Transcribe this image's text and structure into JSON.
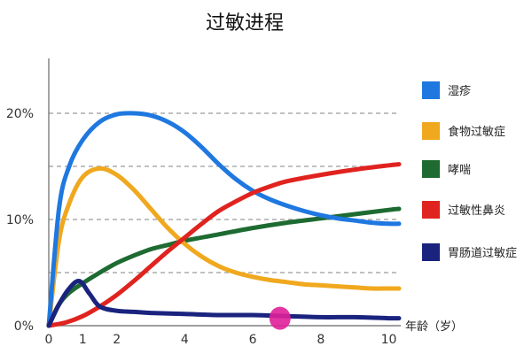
{
  "chart_data": {
    "type": "line",
    "title": "过敏进程",
    "xlabel": "年龄（岁）",
    "ylabel": "",
    "xlim": [
      0,
      10.3
    ],
    "ylim": [
      0,
      24
    ],
    "x_ticks": [
      0,
      1,
      2,
      4,
      6,
      8,
      10
    ],
    "x_tick_labels": [
      "0",
      "1",
      "2",
      "4",
      "6",
      "8",
      "10"
    ],
    "y_ticks": [
      0,
      10,
      20
    ],
    "y_tick_labels": [
      "0%",
      "10%",
      "20%"
    ],
    "dashed_gridlines_y": [
      5,
      10,
      15,
      20
    ],
    "legend_position": "right",
    "series": [
      {
        "name": "湿疹",
        "color": "#1f78e0",
        "x": [
          0,
          0.3,
          0.6,
          1.0,
          1.5,
          2.0,
          2.5,
          3.0,
          3.5,
          4.0,
          4.5,
          5.0,
          5.5,
          6.0,
          6.5,
          7.0,
          7.5,
          8.0,
          8.5,
          9.0,
          9.5,
          10.0,
          10.3
        ],
        "values": [
          0,
          11,
          15,
          17.5,
          19.2,
          19.9,
          20.0,
          19.8,
          19.2,
          18.2,
          16.8,
          15.2,
          13.8,
          12.7,
          11.9,
          11.3,
          10.8,
          10.4,
          10.1,
          9.9,
          9.7,
          9.6,
          9.6
        ]
      },
      {
        "name": "食物过敏症",
        "color": "#f0a81e",
        "x": [
          0,
          0.3,
          0.6,
          1.0,
          1.5,
          2.0,
          2.5,
          3.0,
          3.5,
          4.0,
          4.5,
          5.0,
          5.5,
          6.0,
          6.5,
          7.0,
          7.5,
          8.0,
          8.5,
          9.0,
          9.5,
          10.0,
          10.3
        ],
        "values": [
          0,
          8,
          11.5,
          14,
          14.8,
          14.2,
          12.8,
          11.0,
          9.2,
          7.7,
          6.5,
          5.6,
          5.0,
          4.6,
          4.3,
          4.1,
          3.9,
          3.8,
          3.7,
          3.6,
          3.5,
          3.5,
          3.5
        ]
      },
      {
        "name": "哮喘",
        "color": "#1e6b32",
        "x": [
          0,
          0.3,
          0.6,
          1.0,
          1.5,
          2.0,
          2.5,
          3.0,
          3.5,
          4.0,
          5.0,
          6.0,
          7.0,
          8.0,
          9.0,
          10.0,
          10.3
        ],
        "values": [
          0,
          2.0,
          3.1,
          4.0,
          5.0,
          5.9,
          6.6,
          7.2,
          7.6,
          8.0,
          8.6,
          9.2,
          9.7,
          10.1,
          10.5,
          10.9,
          11.0
        ]
      },
      {
        "name": "过敏性鼻炎",
        "color": "#e0231f",
        "x": [
          0,
          0.5,
          1.0,
          1.5,
          2.0,
          2.5,
          3.0,
          3.5,
          4.0,
          4.5,
          5.0,
          5.5,
          6.0,
          6.5,
          7.0,
          8.0,
          9.0,
          10.0,
          10.3
        ],
        "values": [
          0,
          0.3,
          0.9,
          1.8,
          2.9,
          4.2,
          5.6,
          7.0,
          8.3,
          9.6,
          10.8,
          11.7,
          12.5,
          13.1,
          13.6,
          14.2,
          14.7,
          15.1,
          15.2
        ]
      },
      {
        "name": "胃肠道过敏症",
        "color": "#1a237e",
        "x": [
          0,
          0.3,
          0.6,
          0.9,
          1.2,
          1.5,
          2.0,
          2.5,
          3.0,
          4.0,
          5.0,
          6.0,
          7.0,
          8.0,
          9.0,
          10.0,
          10.3
        ],
        "values": [
          0,
          2.0,
          3.5,
          4.2,
          3.0,
          1.8,
          1.4,
          1.3,
          1.2,
          1.1,
          1.0,
          1.0,
          0.9,
          0.8,
          0.8,
          0.7,
          0.7
        ]
      }
    ],
    "marker": {
      "x": 6.8,
      "y": 0.7,
      "color": "#e0209a"
    }
  }
}
